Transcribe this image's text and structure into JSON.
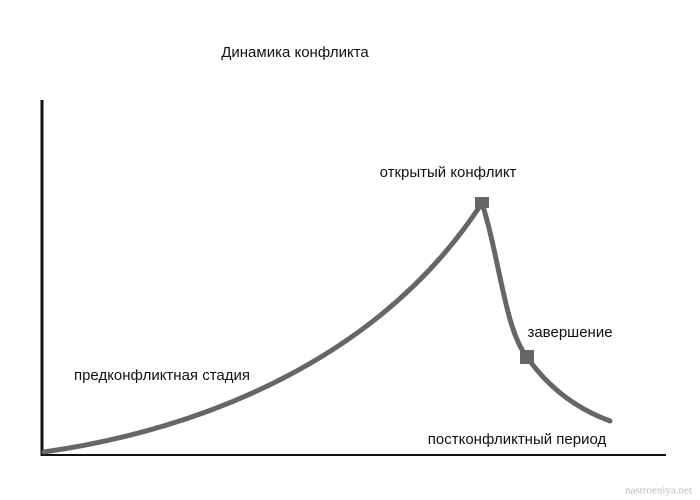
{
  "title": "Динамика конфликта",
  "stages": {
    "pre": "предконфликтная стадия",
    "open": "открытый конфликт",
    "end": "завершение",
    "post": "постконфликтный период"
  },
  "watermark": "nastroeniya.net"
}
